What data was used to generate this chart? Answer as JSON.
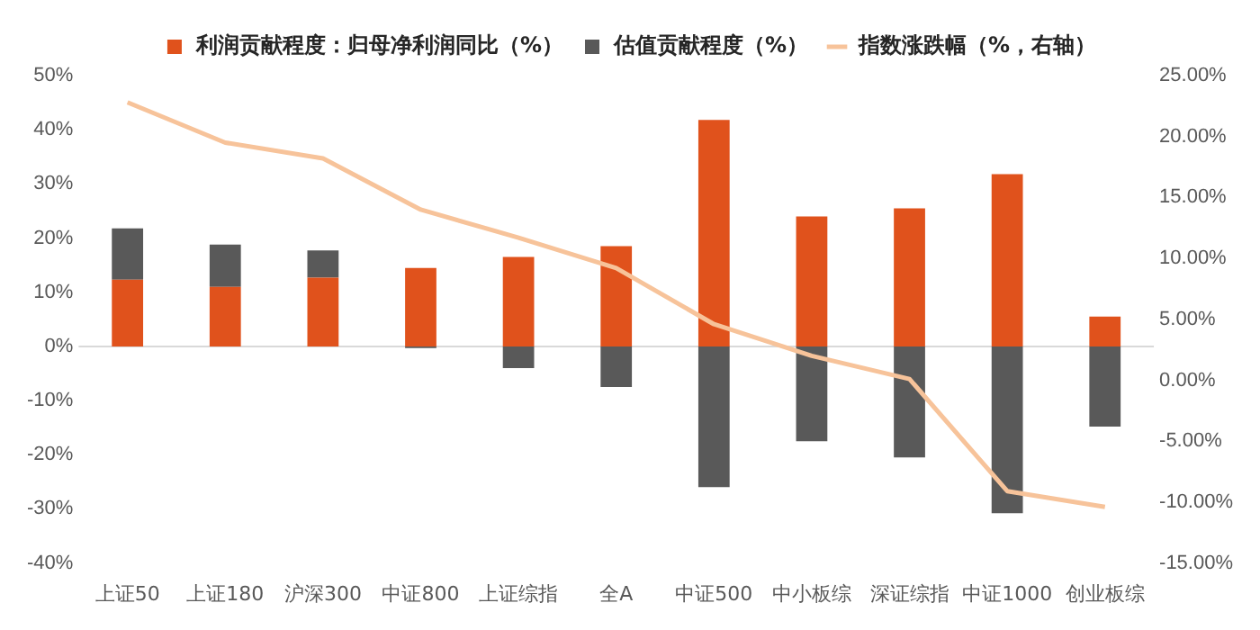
{
  "chart_data": {
    "type": "bar",
    "stacked": true,
    "categories": [
      "上证50",
      "上证180",
      "沪深300",
      "中证800",
      "上证综指",
      "全A",
      "中证500",
      "中小板综",
      "深证综指",
      "中证1000",
      "创业板综"
    ],
    "series": [
      {
        "name": "利润贡献程度：归母净利润同比（%）",
        "color": "#e0521c",
        "values": [
          12.3,
          11,
          12.7,
          14.5,
          16.5,
          18.5,
          41.8,
          24,
          25.5,
          31.8,
          5.5
        ]
      },
      {
        "name": "估值贡献程度（%）",
        "color": "#595959",
        "values": [
          9.5,
          7.8,
          5,
          -0.3,
          -4,
          -7.5,
          -26,
          -17.5,
          -20.5,
          -30.8,
          -14.8
        ]
      },
      {
        "name": "指数涨跌幅（%，右轴）",
        "type": "line",
        "axis": "y2",
        "color": "#f7c39a",
        "values": [
          22.8,
          19.5,
          18.2,
          14,
          11.7,
          9.2,
          4.6,
          2,
          0.1,
          -9.1,
          -10.4
        ]
      }
    ],
    "ylim": [
      -40,
      50
    ],
    "yticks": [
      {
        "value": -40,
        "label": "-40%"
      },
      {
        "value": -30,
        "label": "-30%"
      },
      {
        "value": -20,
        "label": "-20%"
      },
      {
        "value": -10,
        "label": "-10%"
      },
      {
        "value": 0,
        "label": "0%"
      },
      {
        "value": 10,
        "label": "10%"
      },
      {
        "value": 20,
        "label": "20%"
      },
      {
        "value": 30,
        "label": "30%"
      },
      {
        "value": 40,
        "label": "40%"
      },
      {
        "value": 50,
        "label": "50%"
      }
    ],
    "y2lim": [
      -15,
      25
    ],
    "y2ticks": [
      {
        "value": -15,
        "label": "-15.00%"
      },
      {
        "value": -10,
        "label": "-10.00%"
      },
      {
        "value": -5,
        "label": "-5.00%"
      },
      {
        "value": 0,
        "label": "0.00%"
      },
      {
        "value": 5,
        "label": "5.00%"
      },
      {
        "value": 10,
        "label": "10.00%"
      },
      {
        "value": 15,
        "label": "15.00%"
      },
      {
        "value": 20,
        "label": "20.00%"
      },
      {
        "value": 25,
        "label": "25.00%"
      }
    ],
    "ref_lines": [
      {
        "axis": "y",
        "value": 0,
        "color": "#d9d9d9"
      }
    ],
    "grid": false,
    "legend": "top",
    "marker": "none"
  }
}
